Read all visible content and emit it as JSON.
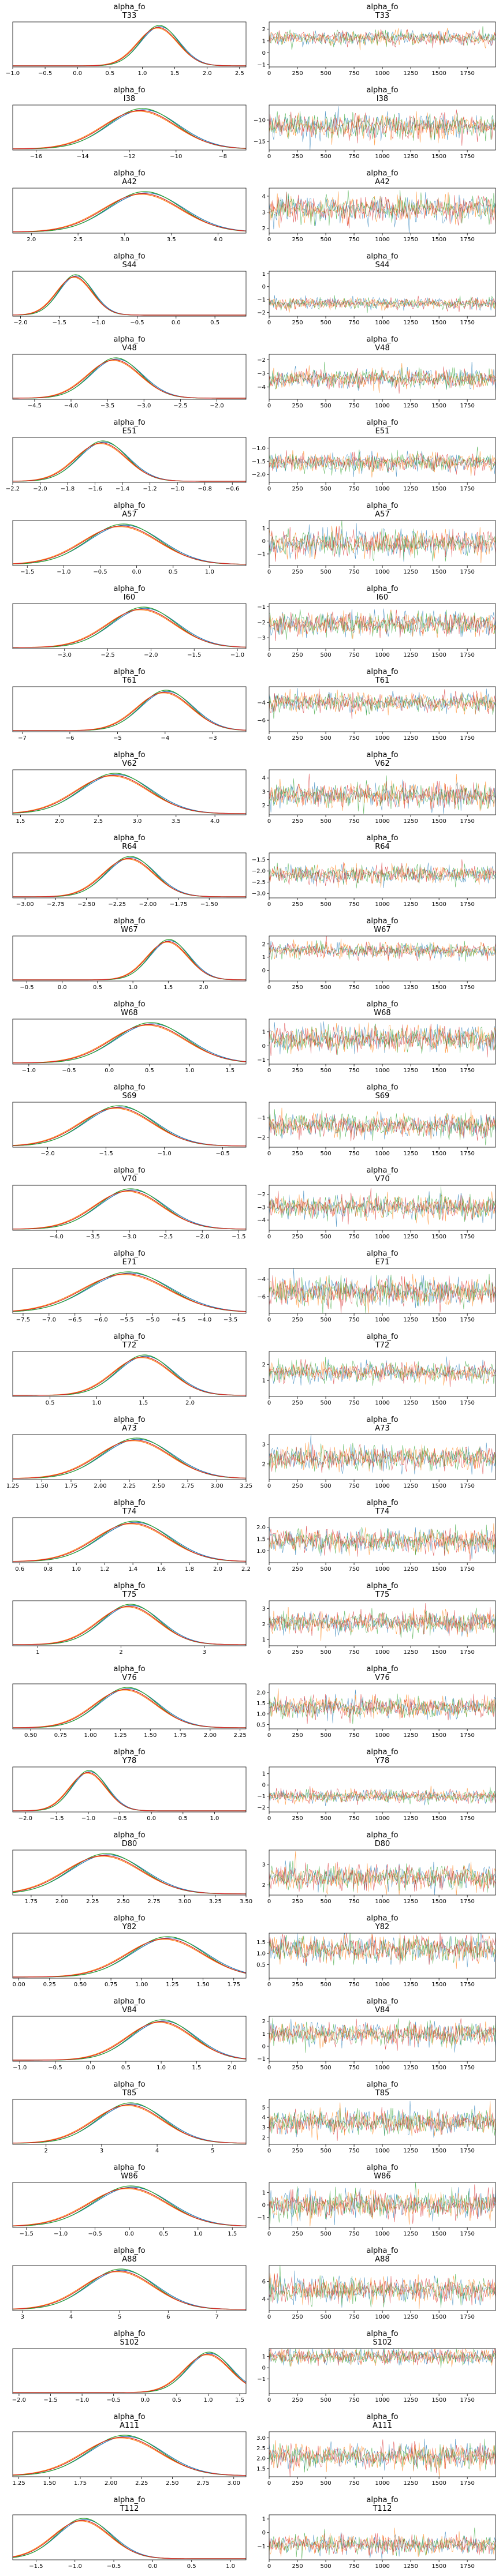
{
  "chart_data": {
    "type": "trace-plot",
    "variable": "alpha_fo",
    "series_colors": [
      "#1f77b4",
      "#ff7f0e",
      "#2ca02c",
      "#d62728"
    ],
    "trace_x": {
      "range": [
        0,
        1999
      ],
      "ticks": [
        0,
        250,
        500,
        750,
        1000,
        1250,
        1500,
        1750
      ]
    },
    "panels": [
      {
        "label": "T33",
        "mean": 1.25,
        "sd": 0.3,
        "kde_range": [
          -1.0,
          2.6
        ],
        "kde_ticks": [
          -1.0,
          -0.5,
          0.0,
          0.5,
          1.0,
          1.5,
          2.0,
          2.5
        ],
        "trace_range": [
          -1.2,
          2.6
        ],
        "trace_ticks": [
          -1,
          0,
          1,
          2
        ]
      },
      {
        "label": "I38",
        "mean": -11.5,
        "sd": 1.5,
        "kde_range": [
          -17,
          -7
        ],
        "kde_ticks": [
          -16,
          -14,
          -12,
          -10,
          -8
        ],
        "trace_range": [
          -17,
          -6.5
        ],
        "trace_ticks": [
          -15,
          -10
        ]
      },
      {
        "label": "A42",
        "mean": 3.2,
        "sd": 0.4,
        "kde_range": [
          1.8,
          4.3
        ],
        "kde_ticks": [
          2.0,
          2.5,
          3.0,
          3.5,
          4.0
        ],
        "trace_range": [
          1.7,
          4.5
        ],
        "trace_ticks": [
          2,
          3,
          4
        ]
      },
      {
        "label": "S44",
        "mean": -1.3,
        "sd": 0.22,
        "kde_range": [
          -2.1,
          0.9
        ],
        "kde_ticks": [
          -2.0,
          -1.5,
          -1.0,
          -0.5,
          0.0,
          0.5
        ],
        "trace_range": [
          -2.3,
          1.2
        ],
        "trace_ticks": [
          -2,
          -1,
          0,
          1
        ]
      },
      {
        "label": "V48",
        "mean": -3.4,
        "sd": 0.35,
        "kde_range": [
          -4.8,
          -1.6
        ],
        "kde_ticks": [
          -4.5,
          -4.0,
          -3.5,
          -3.0,
          -2.5,
          -2.0
        ],
        "trace_range": [
          -4.9,
          -1.6
        ],
        "trace_ticks": [
          -4,
          -3,
          -2
        ]
      },
      {
        "label": "E51",
        "mean": -1.55,
        "sd": 0.18,
        "kde_range": [
          -2.2,
          -0.5
        ],
        "kde_ticks": [
          -2.2,
          -2.0,
          -1.8,
          -1.6,
          -1.4,
          -1.2,
          -1.0,
          -0.8,
          -0.6
        ],
        "trace_range": [
          -2.3,
          -0.6
        ],
        "trace_ticks": [
          -2.0,
          -1.5,
          -1.0
        ]
      },
      {
        "label": "A57",
        "mean": -0.2,
        "sd": 0.5,
        "kde_range": [
          -1.7,
          1.5
        ],
        "kde_ticks": [
          -1.5,
          -1.0,
          -0.5,
          0.0,
          0.5,
          1.0
        ],
        "trace_range": [
          -1.9,
          1.6
        ],
        "trace_ticks": [
          -1,
          0,
          1
        ]
      },
      {
        "label": "I60",
        "mean": -2.1,
        "sd": 0.38,
        "kde_range": [
          -3.6,
          -0.9
        ],
        "kde_ticks": [
          -3.0,
          -2.5,
          -2.0,
          -1.5,
          -1.0
        ],
        "trace_range": [
          -3.7,
          -0.8
        ],
        "trace_ticks": [
          -3,
          -2,
          -1
        ]
      },
      {
        "label": "T61",
        "mean": -4.0,
        "sd": 0.55,
        "kde_range": [
          -7.2,
          -2.3
        ],
        "kde_ticks": [
          -7,
          -6,
          -5,
          -4,
          -3
        ],
        "trace_range": [
          -7.3,
          -2.2
        ],
        "trace_ticks": [
          -6,
          -4
        ]
      },
      {
        "label": "V62",
        "mean": 2.7,
        "sd": 0.45,
        "kde_range": [
          1.4,
          4.4
        ],
        "kde_ticks": [
          1.5,
          2.0,
          2.5,
          3.0,
          3.5,
          4.0
        ],
        "trace_range": [
          1.3,
          4.6
        ],
        "trace_ticks": [
          2,
          3,
          4
        ]
      },
      {
        "label": "R64",
        "mean": -2.15,
        "sd": 0.2,
        "kde_range": [
          -3.1,
          -1.2
        ],
        "kde_ticks": [
          -3.0,
          -2.75,
          -2.5,
          -2.25,
          -2.0,
          -1.75,
          -1.5
        ],
        "trace_range": [
          -3.2,
          -1.2
        ],
        "trace_ticks": [
          -3.0,
          -2.5,
          -2.0,
          -1.5
        ]
      },
      {
        "label": "W67",
        "mean": 1.5,
        "sd": 0.28,
        "kde_range": [
          -0.7,
          2.6
        ],
        "kde_ticks": [
          -0.5,
          0.0,
          0.5,
          1.0,
          1.5,
          2.0
        ],
        "trace_range": [
          -0.8,
          2.6
        ],
        "trace_ticks": [
          0,
          1,
          2
        ]
      },
      {
        "label": "W68",
        "mean": 0.5,
        "sd": 0.45,
        "kde_range": [
          -1.2,
          1.7
        ],
        "kde_ticks": [
          -1.0,
          -0.5,
          0.0,
          0.5,
          1.0,
          1.5
        ],
        "trace_range": [
          -1.3,
          1.9
        ],
        "trace_ticks": [
          -1,
          0,
          1
        ]
      },
      {
        "label": "S69",
        "mean": -1.4,
        "sd": 0.3,
        "kde_range": [
          -2.3,
          -0.3
        ],
        "kde_ticks": [
          -2.0,
          -1.5,
          -1.0,
          -0.5
        ],
        "trace_range": [
          -2.5,
          -0.2
        ],
        "trace_ticks": [
          -2,
          -1
        ]
      },
      {
        "label": "V70",
        "mean": -3.0,
        "sd": 0.45,
        "kde_range": [
          -4.6,
          -1.4
        ],
        "kde_ticks": [
          -4.0,
          -3.5,
          -3.0,
          -2.5,
          -2.0,
          -1.5
        ],
        "trace_range": [
          -4.8,
          -1.3
        ],
        "trace_ticks": [
          -4,
          -3,
          -2
        ]
      },
      {
        "label": "E71",
        "mean": -5.5,
        "sd": 0.8,
        "kde_range": [
          -7.7,
          -3.2
        ],
        "kde_ticks": [
          -7.5,
          -7.0,
          -6.5,
          -6.0,
          -5.5,
          -5.0,
          -4.5,
          -4.0,
          -3.5
        ],
        "trace_range": [
          -7.9,
          -2.8
        ],
        "trace_ticks": [
          -6,
          -4
        ]
      },
      {
        "label": "T72",
        "mean": 1.5,
        "sd": 0.3,
        "kde_range": [
          0.1,
          2.6
        ],
        "kde_ticks": [
          0.5,
          1.0,
          1.5,
          2.0
        ],
        "trace_range": [
          0.0,
          2.8
        ],
        "trace_ticks": [
          1,
          2
        ]
      },
      {
        "label": "A73",
        "mean": 2.3,
        "sd": 0.3,
        "kde_range": [
          1.25,
          3.25
        ],
        "kde_ticks": [
          1.25,
          1.5,
          1.75,
          2.0,
          2.25,
          2.5,
          2.75,
          3.0,
          3.25
        ],
        "trace_range": [
          1.2,
          3.5
        ],
        "trace_ticks": [
          2,
          3
        ]
      },
      {
        "label": "T74",
        "mean": 1.4,
        "sd": 0.25,
        "kde_range": [
          0.55,
          2.2
        ],
        "kde_ticks": [
          0.6,
          0.8,
          1.0,
          1.2,
          1.4,
          1.6,
          1.8,
          2.0,
          2.2
        ],
        "trace_range": [
          0.5,
          2.4
        ],
        "trace_ticks": [
          1.0,
          1.5,
          2.0
        ]
      },
      {
        "label": "T75",
        "mean": 2.1,
        "sd": 0.35,
        "kde_range": [
          0.7,
          3.5
        ],
        "kde_ticks": [
          1,
          2,
          3
        ],
        "trace_range": [
          0.6,
          3.5
        ],
        "trace_ticks": [
          1,
          2,
          3
        ]
      },
      {
        "label": "V76",
        "mean": 1.3,
        "sd": 0.25,
        "kde_range": [
          0.35,
          2.3
        ],
        "kde_ticks": [
          0.5,
          0.75,
          1.0,
          1.25,
          1.5,
          1.75,
          2.0,
          2.25
        ],
        "trace_range": [
          0.3,
          2.4
        ],
        "trace_ticks": [
          0.5,
          1.0,
          1.5,
          2.0
        ]
      },
      {
        "label": "Y78",
        "mean": -1.0,
        "sd": 0.28,
        "kde_range": [
          -2.2,
          1.5
        ],
        "kde_ticks": [
          -2.0,
          -1.5,
          -1.0,
          -0.5,
          0.0,
          0.5,
          1.0
        ],
        "trace_range": [
          -2.4,
          1.6
        ],
        "trace_ticks": [
          -2,
          -1,
          0,
          1
        ]
      },
      {
        "label": "D80",
        "mean": 2.35,
        "sd": 0.3,
        "kde_range": [
          1.6,
          3.5
        ],
        "kde_ticks": [
          1.75,
          2.0,
          2.25,
          2.5,
          2.75,
          3.0,
          3.25,
          3.5
        ],
        "trace_range": [
          1.5,
          3.7
        ],
        "trace_ticks": [
          2,
          3
        ]
      },
      {
        "label": "Y82",
        "mean": 1.2,
        "sd": 0.3,
        "kde_range": [
          -0.05,
          1.85
        ],
        "kde_ticks": [
          0.0,
          0.25,
          0.5,
          0.75,
          1.0,
          1.25,
          1.5,
          1.75
        ],
        "trace_range": [
          -0.1,
          1.9
        ],
        "trace_ticks": [
          0.5,
          1.0,
          1.5
        ]
      },
      {
        "label": "V84",
        "mean": 1.0,
        "sd": 0.45,
        "kde_range": [
          -1.1,
          2.2
        ],
        "kde_ticks": [
          -1.0,
          -0.5,
          0.0,
          0.5,
          1.0,
          1.5,
          2.0
        ],
        "trace_range": [
          -1.2,
          2.4
        ],
        "trace_ticks": [
          -1,
          0,
          1,
          2
        ]
      },
      {
        "label": "T85",
        "mean": 3.5,
        "sd": 0.6,
        "kde_range": [
          1.4,
          5.6
        ],
        "kde_ticks": [
          2,
          3,
          4,
          5
        ],
        "trace_range": [
          1.3,
          5.8
        ],
        "trace_ticks": [
          2,
          3,
          4,
          5
        ]
      },
      {
        "label": "W86",
        "mean": 0.0,
        "sd": 0.55,
        "kde_range": [
          -1.7,
          1.7
        ],
        "kde_ticks": [
          -1.5,
          -1.0,
          -0.5,
          0.0,
          0.5,
          1.0,
          1.5
        ],
        "trace_range": [
          -1.8,
          1.8
        ],
        "trace_ticks": [
          -1,
          0,
          1
        ]
      },
      {
        "label": "A88",
        "mean": 5.0,
        "sd": 0.7,
        "kde_range": [
          2.8,
          7.6
        ],
        "kde_ticks": [
          3,
          4,
          5,
          6,
          7
        ],
        "trace_range": [
          2.7,
          7.8
        ],
        "trace_ticks": [
          4,
          6
        ]
      },
      {
        "label": "S102",
        "mean": 1.0,
        "sd": 0.35,
        "kde_range": [
          -2.1,
          1.6
        ],
        "kde_ticks": [
          -2.0,
          -1.5,
          -1.0,
          -0.5,
          0.0,
          0.5,
          1.0,
          1.5
        ],
        "trace_range": [
          -2.3,
          1.7
        ],
        "trace_ticks": [
          -1,
          0,
          1
        ]
      },
      {
        "label": "A111",
        "mean": 2.1,
        "sd": 0.3,
        "kde_range": [
          1.2,
          3.1
        ],
        "kde_ticks": [
          1.25,
          1.5,
          1.75,
          2.0,
          2.25,
          2.5,
          2.75,
          3.0
        ],
        "trace_range": [
          1.1,
          3.3
        ],
        "trace_ticks": [
          1.5,
          2.0,
          2.5,
          3.0
        ]
      },
      {
        "label": "T112",
        "mean": -0.9,
        "sd": 0.35,
        "kde_range": [
          -1.8,
          1.2
        ],
        "kde_ticks": [
          -1.5,
          -1.0,
          -0.5,
          0.0,
          0.5,
          1.0
        ],
        "trace_range": [
          -2.0,
          1.3
        ],
        "trace_ticks": [
          -1,
          0,
          1
        ]
      }
    ]
  }
}
